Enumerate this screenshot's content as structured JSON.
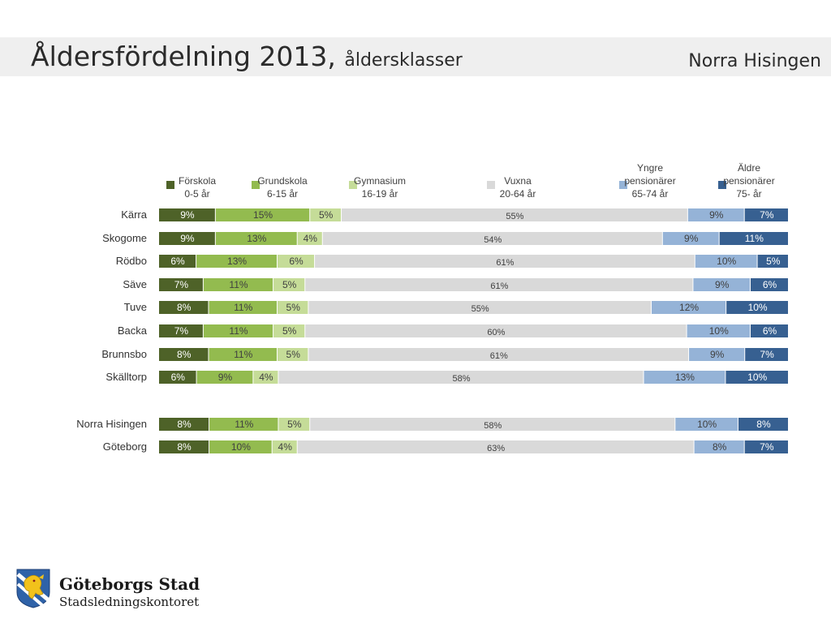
{
  "header": {
    "title": "Åldersfördelning 2013,",
    "subtitle": "åldersklasser",
    "area": "Norra Hisingen"
  },
  "logo": {
    "name": "Göteborgs Stad",
    "department": "Stadsledningskontoret"
  },
  "chart_data": {
    "type": "bar",
    "orientation": "horizontal",
    "stacked": "percent",
    "legend_position": "top",
    "series": [
      {
        "name": [
          "Förskola",
          "0-5 år"
        ],
        "color": "#4e6228"
      },
      {
        "name": [
          "Grundskola",
          "6-15 år"
        ],
        "color": "#93bb4f"
      },
      {
        "name": [
          "Gymnasium",
          "16-19 år"
        ],
        "color": "#c5dc98"
      },
      {
        "name": [
          "Vuxna",
          "20-64 år"
        ],
        "color": "#d9d9d9"
      },
      {
        "name": [
          "Yngre",
          "pensionärer",
          "65-74 år"
        ],
        "color": "#95b3d7"
      },
      {
        "name": [
          "Äldre",
          "pensionärer",
          "75- år"
        ],
        "color": "#376091"
      }
    ],
    "rows": [
      {
        "label": "Kärra",
        "values": [
          9,
          15,
          5,
          55,
          9,
          7
        ]
      },
      {
        "label": "Skogome",
        "values": [
          9,
          13,
          4,
          54,
          9,
          11
        ]
      },
      {
        "label": "Rödbo",
        "values": [
          6,
          13,
          6,
          61,
          10,
          5
        ]
      },
      {
        "label": "Säve",
        "values": [
          7,
          11,
          5,
          61,
          9,
          6
        ]
      },
      {
        "label": "Tuve",
        "values": [
          8,
          11,
          5,
          55,
          12,
          10
        ]
      },
      {
        "label": "Backa",
        "values": [
          7,
          11,
          5,
          60,
          10,
          6
        ]
      },
      {
        "label": "Brunnsbo",
        "values": [
          8,
          11,
          5,
          61,
          9,
          7
        ]
      },
      {
        "label": "Skälltorp",
        "values": [
          6,
          9,
          4,
          58,
          13,
          10
        ]
      },
      {
        "label": "Norra Hisingen",
        "values": [
          8,
          11,
          5,
          58,
          10,
          8
        ]
      },
      {
        "label": "Göteborg",
        "values": [
          8,
          10,
          4,
          63,
          8,
          7
        ]
      }
    ],
    "value_suffix": "%"
  }
}
